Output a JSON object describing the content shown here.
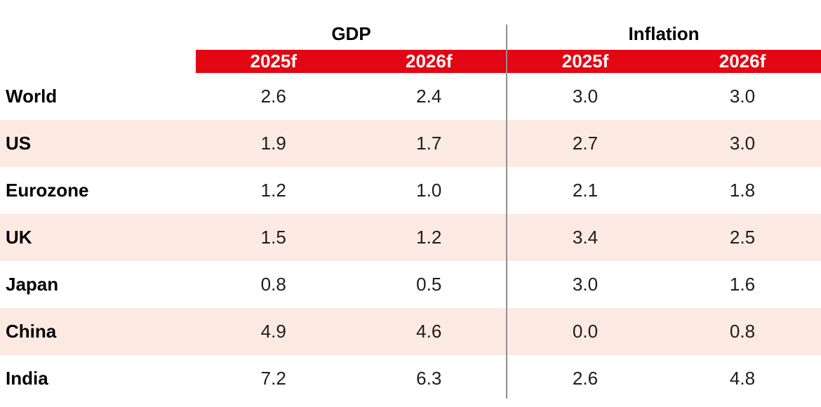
{
  "colors": {
    "accent_red": "#e30613",
    "row_alt_pink": "#fceae2",
    "divider_gray": "#8f8f8f",
    "label_black": "#000000",
    "value_dark": "#1d1d1b",
    "header_white": "#ffffff"
  },
  "table": {
    "group_headers": [
      {
        "label": "GDP"
      },
      {
        "label": "Inflation"
      }
    ],
    "subheaders": [
      "2025f",
      "2026f",
      "2025f",
      "2026f"
    ],
    "rows": [
      {
        "label": "World",
        "values": [
          "2.6",
          "2.4",
          "3.0",
          "3.0"
        ]
      },
      {
        "label": "US",
        "values": [
          "1.9",
          "1.7",
          "2.7",
          "3.0"
        ]
      },
      {
        "label": "Eurozone",
        "values": [
          "1.2",
          "1.0",
          "2.1",
          "1.8"
        ]
      },
      {
        "label": "UK",
        "values": [
          "1.5",
          "1.2",
          "3.4",
          "2.5"
        ]
      },
      {
        "label": "Japan",
        "values": [
          "0.8",
          "0.5",
          "3.0",
          "1.6"
        ]
      },
      {
        "label": "China",
        "values": [
          "4.9",
          "4.6",
          "0.0",
          "0.8"
        ]
      },
      {
        "label": "India",
        "values": [
          "7.2",
          "6.3",
          "2.6",
          "4.8"
        ]
      }
    ]
  },
  "chart_data": {
    "type": "table",
    "title": "",
    "column_groups": [
      "GDP",
      "Inflation"
    ],
    "columns": [
      "GDP 2025f",
      "GDP 2026f",
      "Inflation 2025f",
      "Inflation 2026f"
    ],
    "row_labels": [
      "World",
      "US",
      "Eurozone",
      "UK",
      "Japan",
      "China",
      "India"
    ],
    "values": [
      [
        2.6,
        2.4,
        3.0,
        3.0
      ],
      [
        1.9,
        1.7,
        2.7,
        3.0
      ],
      [
        1.2,
        1.0,
        2.1,
        1.8
      ],
      [
        1.5,
        1.2,
        3.4,
        2.5
      ],
      [
        0.8,
        0.5,
        3.0,
        1.6
      ],
      [
        4.9,
        4.6,
        0.0,
        0.8
      ],
      [
        7.2,
        6.3,
        2.6,
        4.8
      ]
    ]
  }
}
